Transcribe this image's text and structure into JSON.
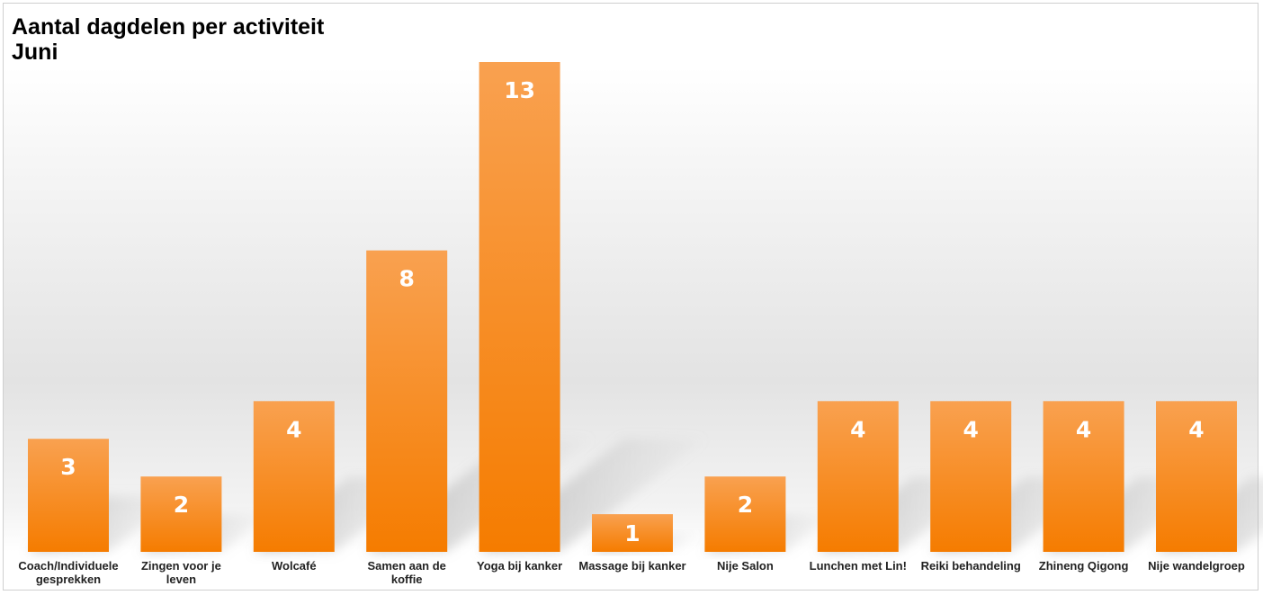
{
  "chart_data": {
    "type": "bar",
    "title": "Aantal dagdelen per activiteit",
    "subtitle": "Juni",
    "categories": [
      [
        "Coach/Individuele",
        "gesprekken"
      ],
      [
        "Zingen voor je",
        "leven"
      ],
      [
        "Wolcafé"
      ],
      [
        "Samen aan de",
        "koffie"
      ],
      [
        "Yoga bij kanker"
      ],
      [
        "Massage bij kanker"
      ],
      [
        "Nije Salon"
      ],
      [
        "Lunchen met Lin!"
      ],
      [
        "Reiki behandeling"
      ],
      [
        "Zhineng Qigong"
      ],
      [
        "Nije wandelgroep"
      ]
    ],
    "values": [
      3,
      2,
      4,
      8,
      13,
      1,
      2,
      4,
      4,
      4,
      4
    ],
    "data_labels": [
      "3",
      "2",
      "4",
      "8",
      "13",
      "1",
      "2",
      "4",
      "4",
      "4",
      "4"
    ],
    "ylim": [
      0,
      13
    ],
    "grid": false,
    "legend": "none",
    "colors": {
      "bar_top": "#f9a150",
      "bar_bottom": "#f57c00",
      "label": "#ffffff",
      "shadow": "#9a9a9a"
    }
  }
}
